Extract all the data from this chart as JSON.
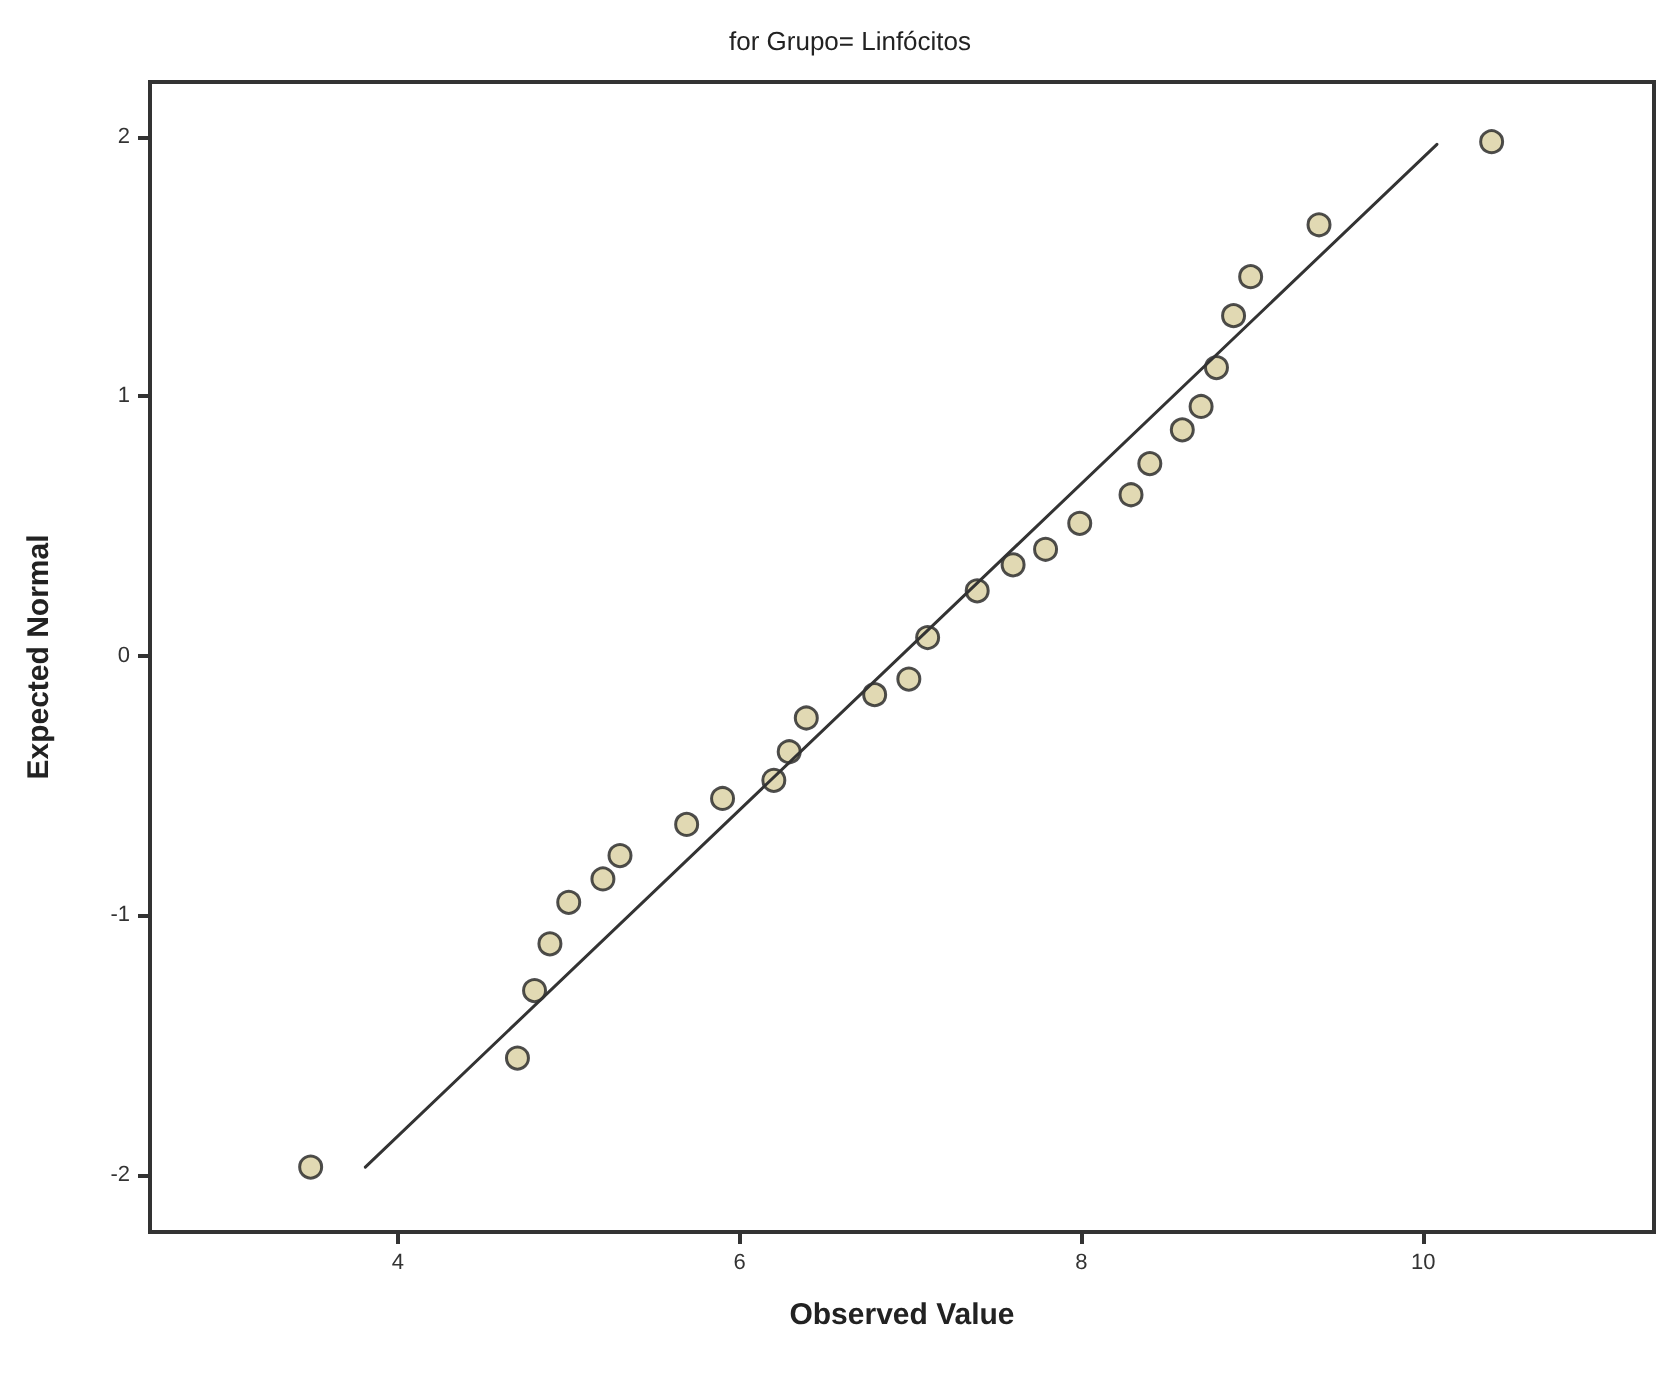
{
  "chart_data": {
    "type": "scatter",
    "title": "for Grupo= Linfócitos",
    "xlabel": "Observed Value",
    "ylabel": "Expected Normal",
    "xlim": [
      2.55,
      11.35
    ],
    "xticks": [
      4,
      6,
      8,
      10
    ],
    "ylim": [
      -2.22,
      2.21
    ],
    "yticks": [
      -2,
      -1,
      0,
      1,
      2
    ],
    "grid": false,
    "marker": "circle",
    "series": [
      {
        "color": "#d9d0a0",
        "x": [
          3.49,
          4.7,
          4.8,
          4.89,
          5.0,
          5.2,
          5.3,
          5.69,
          5.9,
          6.2,
          6.29,
          6.39,
          6.79,
          6.99,
          7.1,
          7.39,
          7.6,
          7.79,
          7.99,
          8.29,
          8.4,
          8.59,
          8.7,
          8.79,
          8.89,
          8.99,
          9.39,
          10.4
        ],
        "values": [
          -1.97,
          -1.55,
          -1.29,
          -1.11,
          -0.95,
          -0.86,
          -0.77,
          -0.65,
          -0.55,
          -0.48,
          -0.37,
          -0.24,
          -0.15,
          -0.09,
          0.07,
          0.25,
          0.35,
          0.41,
          0.51,
          0.62,
          0.74,
          0.87,
          0.96,
          1.11,
          1.31,
          1.46,
          1.66,
          1.98
        ]
      },
      {
        "type": "line",
        "color": "#333333",
        "marker": "none",
        "line_style": "solid",
        "x": [
          3.81,
          10.08
        ],
        "values": [
          -1.97,
          1.97
        ]
      }
    ]
  }
}
